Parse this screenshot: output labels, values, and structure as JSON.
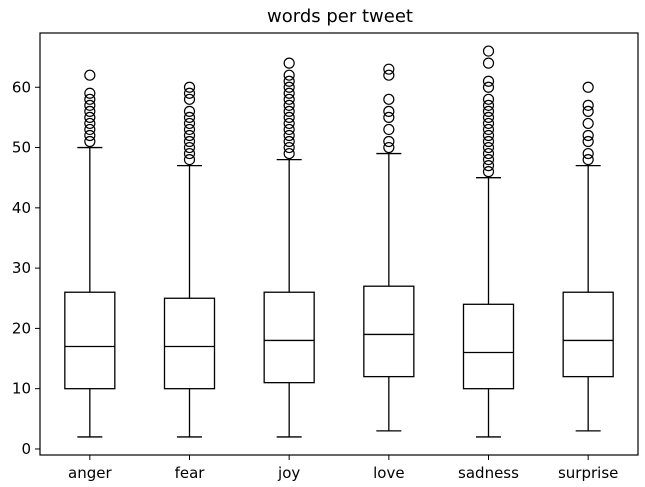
{
  "chart_data": {
    "type": "boxplot",
    "title": "words per tweet",
    "xlabel": "",
    "ylabel": "",
    "ylim": [
      -1,
      69
    ],
    "yticks": [
      0,
      10,
      20,
      30,
      40,
      50,
      60
    ],
    "grid": false,
    "categories": [
      "anger",
      "fear",
      "joy",
      "love",
      "sadness",
      "surprise"
    ],
    "boxes": [
      {
        "whisker_low": 2,
        "q1": 10,
        "median": 17,
        "q3": 26,
        "whisker_high": 50,
        "outliers": [
          51,
          52,
          53,
          54,
          55,
          56,
          57,
          58,
          59,
          62
        ]
      },
      {
        "whisker_low": 2,
        "q1": 10,
        "median": 17,
        "q3": 25,
        "whisker_high": 47,
        "outliers": [
          48,
          49,
          50,
          51,
          52,
          53,
          54,
          55,
          56,
          58,
          59,
          60
        ]
      },
      {
        "whisker_low": 2,
        "q1": 11,
        "median": 18,
        "q3": 26,
        "whisker_high": 48,
        "outliers": [
          49,
          50,
          51,
          52,
          53,
          54,
          55,
          56,
          57,
          58,
          59,
          60,
          61,
          62,
          64
        ]
      },
      {
        "whisker_low": 3,
        "q1": 12,
        "median": 19,
        "q3": 27,
        "whisker_high": 49,
        "outliers": [
          50,
          51,
          53,
          55,
          56,
          58,
          62,
          63
        ]
      },
      {
        "whisker_low": 2,
        "q1": 10,
        "median": 16,
        "q3": 24,
        "whisker_high": 45,
        "outliers": [
          46,
          47,
          48,
          49,
          50,
          51,
          52,
          53,
          54,
          55,
          56,
          57,
          58,
          60,
          61,
          64,
          66
        ]
      },
      {
        "whisker_low": 3,
        "q1": 12,
        "median": 18,
        "q3": 26,
        "whisker_high": 47,
        "outliers": [
          48,
          49,
          51,
          52,
          54,
          56,
          57,
          60
        ]
      }
    ]
  }
}
